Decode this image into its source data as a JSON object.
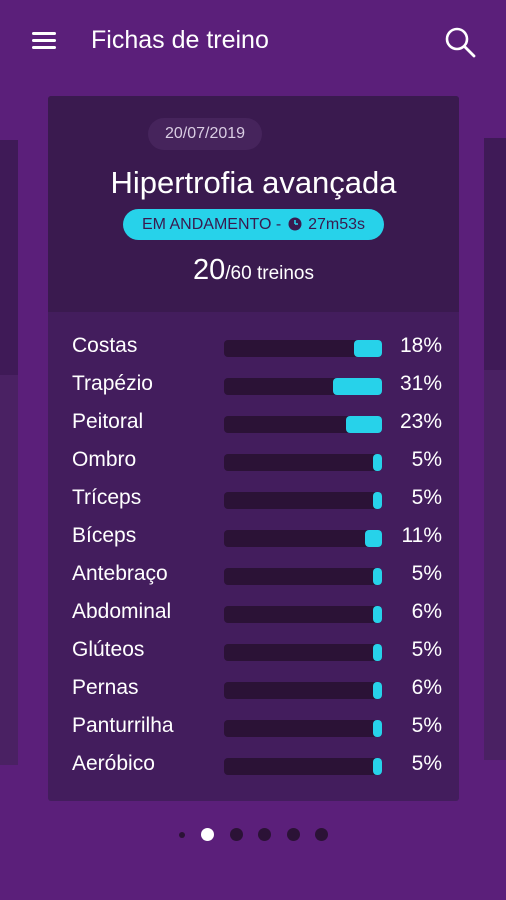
{
  "appbar": {
    "title": "Fichas de treino"
  },
  "card": {
    "date": "20/07/2019",
    "title": "Hipertrofia avançada",
    "status": "EM ANDAMENTO -",
    "elapsed": "27m53s",
    "done": "20",
    "total": "/60 treinos"
  },
  "muscles": [
    {
      "name": "Costas",
      "percent": "18%",
      "fill": 0.18
    },
    {
      "name": "Trapézio",
      "percent": "31%",
      "fill": 0.31
    },
    {
      "name": "Peitoral",
      "percent": "23%",
      "fill": 0.23
    },
    {
      "name": "Ombro",
      "percent": "5%",
      "fill": 0.05
    },
    {
      "name": "Tríceps",
      "percent": "5%",
      "fill": 0.05
    },
    {
      "name": "Bíceps",
      "percent": "11%",
      "fill": 0.11
    },
    {
      "name": "Antebraço",
      "percent": "5%",
      "fill": 0.05
    },
    {
      "name": "Abdominal",
      "percent": "6%",
      "fill": 0.06
    },
    {
      "name": "Glúteos",
      "percent": "5%",
      "fill": 0.05
    },
    {
      "name": "Pernas",
      "percent": "6%",
      "fill": 0.06
    },
    {
      "name": "Panturrilha",
      "percent": "5%",
      "fill": 0.05
    },
    {
      "name": "Aeróbico",
      "percent": "5%",
      "fill": 0.05
    }
  ],
  "pager": {
    "count": 5,
    "active": 1
  },
  "colors": {
    "background": "#5b1f7a",
    "card": "#431d5d",
    "accent": "#27d2ea"
  },
  "icons": [
    "menu-icon",
    "search-icon",
    "clock-icon"
  ]
}
